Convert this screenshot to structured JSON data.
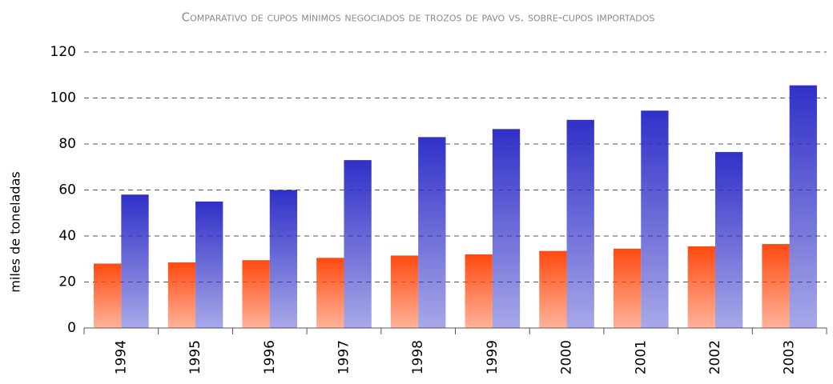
{
  "chart_data": {
    "type": "bar",
    "title": "Comparativo de cupos mínimos negociados de trozos de pavo vs. sobre-cupos importados",
    "y_label": "miles de toneladas",
    "categories": [
      "1994",
      "1995",
      "1996",
      "1997",
      "1998",
      "1999",
      "2000",
      "2001",
      "2002",
      "2003"
    ],
    "series": [
      {
        "color": "#ff4a10",
        "values": [
          28,
          28.5,
          29.5,
          30.5,
          31.5,
          32,
          33.5,
          34.5,
          35.5,
          36.5
        ]
      },
      {
        "color": "#3030c8",
        "values": [
          58,
          55,
          60,
          73,
          83,
          86.5,
          90.5,
          94.5,
          76.5,
          105.5
        ]
      }
    ],
    "ylim": [
      0,
      120
    ],
    "yticks": [
      0,
      20,
      40,
      60,
      80,
      100,
      120
    ],
    "grid": true
  }
}
